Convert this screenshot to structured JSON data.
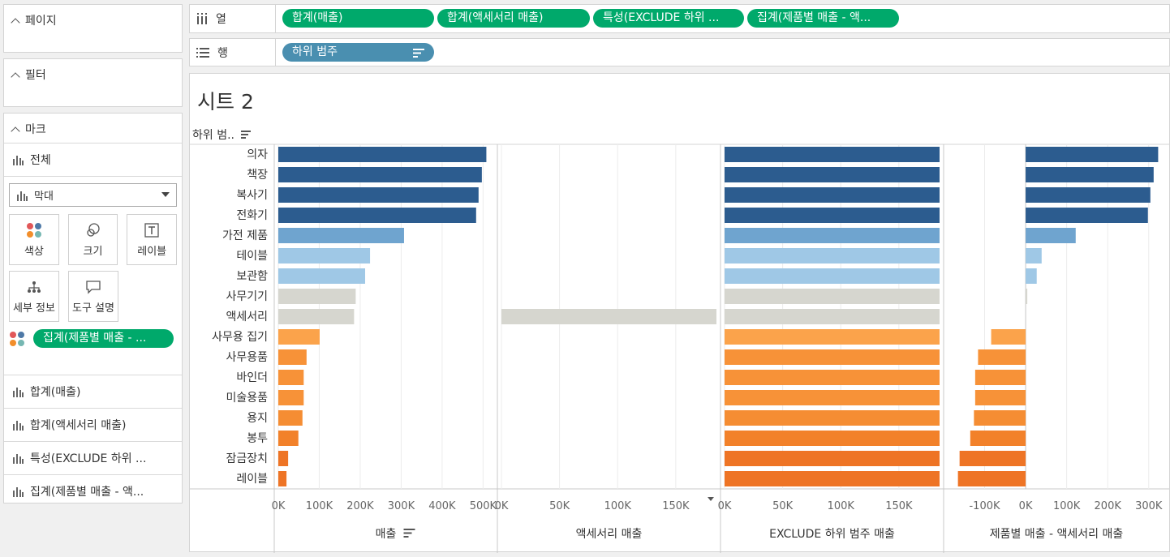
{
  "left_panel": {
    "pages": "페이지",
    "filters": "필터",
    "marks": "마크",
    "all": "전체",
    "mark_type": "막대",
    "buttons": {
      "color": "색상",
      "size": "크기",
      "label": "레이블",
      "detail": "세부 정보",
      "tooltip": "도구 설명"
    },
    "color_pill": "집계(제품별 매출 - ...",
    "measures": [
      "합계(매출)",
      "합계(액세서리 매출)",
      "특성(EXCLUDE 하위 ...",
      "집계(제품별 매출 - 액..."
    ]
  },
  "shelves": {
    "columns_label": "열",
    "rows_label": "행",
    "column_pills": [
      "합계(매출)",
      "합계(액세서리 매출)",
      "특성(EXCLUDE 하위 ...",
      "집계(제품별 매출 - 액..."
    ],
    "row_pill": "하위 범주"
  },
  "sheet_title": "시트 2",
  "row_header": "하위 범..",
  "chart_data": {
    "type": "bar",
    "orientation": "horizontal",
    "categories": [
      "의자",
      "책장",
      "복사기",
      "전화기",
      "가전 제품",
      "테이블",
      "보관함",
      "사무기기",
      "액세서리",
      "사무용 집기",
      "사무용품",
      "바인더",
      "미술용품",
      "용지",
      "봉투",
      "잠금장치",
      "레이블"
    ],
    "colors": [
      "#2c5c8f",
      "#2c5c8f",
      "#2c5c8f",
      "#2c5c8f",
      "#6fa4cf",
      "#9fc8e6",
      "#9fc8e6",
      "#d6d6cf",
      "#d6d6cf",
      "#fba34b",
      "#f79238",
      "#f79238",
      "#f79238",
      "#f58d33",
      "#f2812a",
      "#ee7425",
      "#ee7425"
    ],
    "panes": [
      {
        "title": "매출",
        "sorted": true,
        "ticks": [
          "0K",
          "100K",
          "200K",
          "300K",
          "400K",
          "500K"
        ],
        "xlim": [
          0,
          525000
        ],
        "values": [
          508000,
          497000,
          489000,
          483000,
          307000,
          224000,
          212000,
          189000,
          185000,
          101000,
          69000,
          62000,
          62000,
          59000,
          49000,
          24000,
          20000
        ]
      },
      {
        "title": "액세서리 매출",
        "sorted": false,
        "ticks": [
          "0K",
          "50K",
          "100K",
          "150K"
        ],
        "xlim": [
          0,
          185000
        ],
        "values": [
          0,
          0,
          0,
          0,
          0,
          0,
          0,
          0,
          185000,
          0,
          0,
          0,
          0,
          0,
          0,
          0,
          0
        ]
      },
      {
        "title": "EXCLUDE 하위 범주 매출",
        "sorted": false,
        "ticks": [
          "0K",
          "50K",
          "100K",
          "150K"
        ],
        "xlim": [
          0,
          185000
        ],
        "values": [
          185000,
          185000,
          185000,
          185000,
          185000,
          185000,
          185000,
          185000,
          185000,
          185000,
          185000,
          185000,
          185000,
          185000,
          185000,
          185000,
          185000
        ]
      },
      {
        "title": "제품별 매출 - 액세서리 매출",
        "sorted": false,
        "ticks": [
          "-100K",
          "0K",
          "100K",
          "200K",
          "300K"
        ],
        "xlim": [
          -190000,
          340000
        ],
        "values": [
          323000,
          312000,
          304000,
          298000,
          122000,
          39000,
          27000,
          4000,
          0,
          -84000,
          -116000,
          -123000,
          -123000,
          -126000,
          -135000,
          -161000,
          -165000
        ]
      }
    ]
  }
}
